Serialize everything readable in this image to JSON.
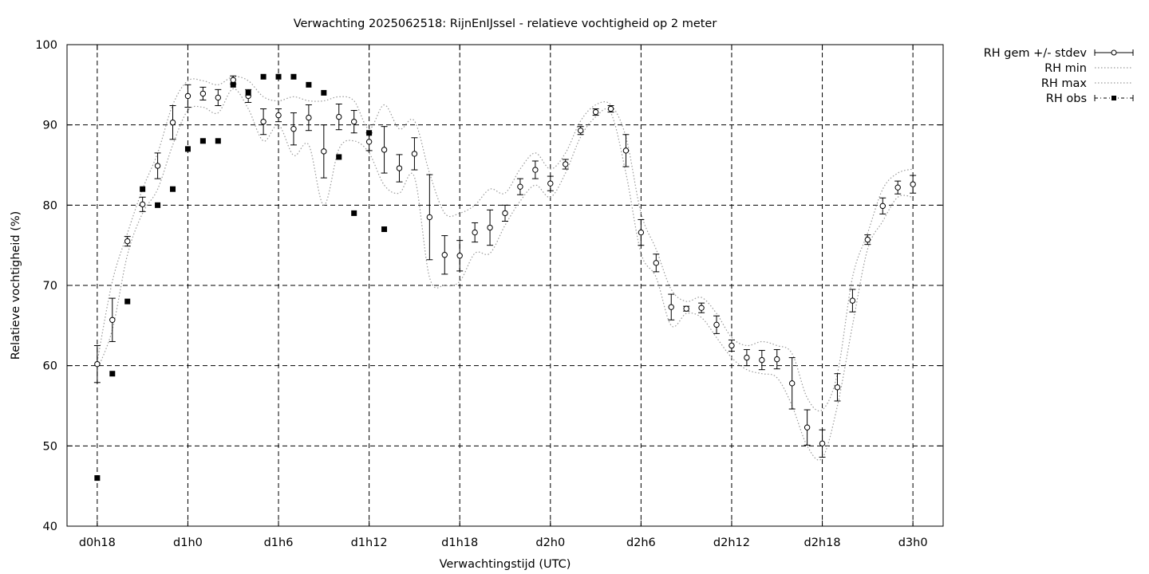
{
  "chart_data": {
    "type": "scatter",
    "title": "Verwachting 2025062518: RijnEnIJssel - relatieve vochtigheid op 2 meter",
    "xlabel": "Verwachtingstijd (UTC)",
    "ylabel": "Relatieve vochtigheid (%)",
    "xlim": [
      -2,
      56
    ],
    "ylim": [
      40,
      100
    ],
    "grid": true,
    "legend_position": "outside-top-right",
    "x_ticks": [
      {
        "x": 0,
        "label": "d0h18"
      },
      {
        "x": 6,
        "label": "d1h0"
      },
      {
        "x": 12,
        "label": "d1h6"
      },
      {
        "x": 18,
        "label": "d1h12"
      },
      {
        "x": 24,
        "label": "d1h18"
      },
      {
        "x": 30,
        "label": "d2h0"
      },
      {
        "x": 36,
        "label": "d2h6"
      },
      {
        "x": 42,
        "label": "d2h12"
      },
      {
        "x": 48,
        "label": "d2h18"
      },
      {
        "x": 54,
        "label": "d3h0"
      }
    ],
    "y_ticks": [
      40,
      50,
      60,
      70,
      80,
      90,
      100
    ],
    "x": [
      0,
      1,
      2,
      3,
      4,
      5,
      6,
      7,
      8,
      9,
      10,
      11,
      12,
      13,
      14,
      15,
      16,
      17,
      18,
      19,
      20,
      21,
      22,
      23,
      24,
      25,
      26,
      27,
      28,
      29,
      30,
      31,
      32,
      33,
      34,
      35,
      36,
      37,
      38,
      39,
      40,
      41,
      42,
      43,
      44,
      45,
      46,
      47,
      48,
      49,
      50,
      51,
      52,
      53,
      54
    ],
    "series": [
      {
        "name": "RH gem +/- stdev",
        "style": "errorbars",
        "mean": [
          60.2,
          65.7,
          75.5,
          80.1,
          84.9,
          90.3,
          93.6,
          93.9,
          93.4,
          95.6,
          93.6,
          90.4,
          91.2,
          89.5,
          90.9,
          86.7,
          91.0,
          90.4,
          87.9,
          86.9,
          84.6,
          86.4,
          78.5,
          73.8,
          73.7,
          76.6,
          77.2,
          79.0,
          82.3,
          84.4,
          82.7,
          85.1,
          89.3,
          91.6,
          92.0,
          86.8,
          76.6,
          72.8,
          67.3,
          67.1,
          67.2,
          65.1,
          62.5,
          61.0,
          60.7,
          60.8,
          57.8,
          52.3,
          50.3,
          57.3,
          68.1,
          75.7,
          79.9,
          82.2,
          82.6
        ],
        "stdev": [
          2.3,
          2.7,
          0.6,
          0.9,
          1.6,
          2.1,
          1.4,
          0.8,
          1.0,
          0.5,
          0.8,
          1.6,
          0.8,
          2.0,
          1.6,
          3.3,
          1.6,
          1.4,
          1.1,
          2.9,
          1.7,
          2.0,
          5.3,
          2.4,
          1.9,
          1.2,
          2.2,
          1.0,
          1.0,
          1.1,
          0.9,
          0.6,
          0.5,
          0.4,
          0.4,
          2.0,
          1.6,
          1.1,
          1.6,
          0.3,
          0.6,
          1.1,
          0.7,
          1.0,
          1.2,
          1.2,
          3.2,
          2.2,
          1.7,
          1.7,
          1.4,
          0.6,
          1.0,
          0.8,
          1.1
        ]
      },
      {
        "name": "RH min",
        "style": "dotted",
        "values": [
          59.5,
          64.5,
          73.8,
          79.0,
          82.0,
          87.5,
          91.8,
          92.2,
          91.5,
          94.5,
          92.0,
          88.0,
          90.0,
          86.2,
          87.5,
          80.0,
          87.0,
          88.0,
          86.5,
          82.5,
          81.5,
          83.5,
          71.0,
          70.0,
          70.5,
          74.0,
          74.0,
          77.5,
          80.5,
          82.5,
          81.0,
          84.0,
          88.5,
          91.0,
          91.5,
          84.0,
          74.0,
          71.0,
          65.0,
          66.5,
          66.0,
          63.5,
          61.0,
          59.5,
          59.0,
          58.5,
          55.0,
          50.0,
          48.5,
          55.0,
          65.0,
          74.5,
          78.0,
          81.0,
          81.0
        ]
      },
      {
        "name": "RH max",
        "style": "dotted",
        "values": [
          60.5,
          70.5,
          76.5,
          82.0,
          86.5,
          92.5,
          95.5,
          95.5,
          95.0,
          96.0,
          95.5,
          93.5,
          93.0,
          93.5,
          93.0,
          93.0,
          93.5,
          93.0,
          89.5,
          92.5,
          89.5,
          90.5,
          84.0,
          79.0,
          79.0,
          80.0,
          82.0,
          81.5,
          84.5,
          86.5,
          84.5,
          86.5,
          90.5,
          92.5,
          92.5,
          88.5,
          79.0,
          74.5,
          69.5,
          68.0,
          68.5,
          66.5,
          63.5,
          62.5,
          63.0,
          62.5,
          61.5,
          56.0,
          54.5,
          59.0,
          71.0,
          76.5,
          82.0,
          84.0,
          84.5
        ]
      },
      {
        "name": "RH obs",
        "style": "squares",
        "x": [
          0,
          1,
          2,
          3,
          4,
          5,
          6,
          7,
          8,
          9,
          10,
          11,
          12,
          13,
          14,
          15,
          16,
          17,
          18,
          19
        ],
        "values": [
          46,
          59,
          68,
          82,
          80,
          82,
          87,
          88,
          88,
          95,
          94,
          96,
          96,
          96,
          95,
          94,
          86,
          79,
          89,
          77
        ]
      }
    ]
  }
}
